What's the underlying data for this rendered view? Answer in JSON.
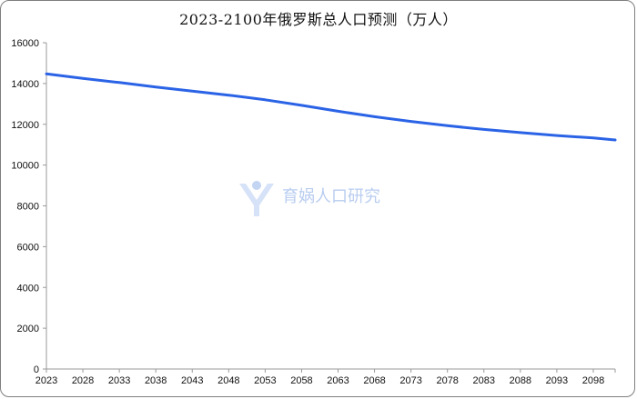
{
  "chart_data": {
    "type": "line",
    "title": "2023-2100年俄罗斯总人口预测（万人）",
    "xlabel": "",
    "ylabel": "",
    "x_ticks": [
      "2023",
      "2028",
      "2033",
      "2038",
      "2043",
      "2048",
      "2053",
      "2058",
      "2063",
      "2068",
      "2073",
      "2078",
      "2083",
      "2088",
      "2093",
      "2098"
    ],
    "y_ticks": [
      0,
      2000,
      4000,
      6000,
      8000,
      10000,
      12000,
      14000,
      16000
    ],
    "ylim": [
      0,
      16000
    ],
    "xlim": [
      2023,
      2101
    ],
    "grid": false,
    "legend": "none",
    "series": [
      {
        "color": "#2b63e6",
        "points": [
          [
            2023,
            14470
          ],
          [
            2028,
            14250
          ],
          [
            2033,
            14050
          ],
          [
            2038,
            13830
          ],
          [
            2043,
            13630
          ],
          [
            2048,
            13430
          ],
          [
            2053,
            13200
          ],
          [
            2058,
            12930
          ],
          [
            2063,
            12640
          ],
          [
            2068,
            12370
          ],
          [
            2073,
            12140
          ],
          [
            2078,
            11930
          ],
          [
            2083,
            11750
          ],
          [
            2088,
            11590
          ],
          [
            2093,
            11450
          ],
          [
            2098,
            11330
          ],
          [
            2101,
            11230
          ]
        ]
      }
    ]
  },
  "watermark": {
    "text": "育娲人口研究",
    "icon": "person-logo-icon"
  }
}
